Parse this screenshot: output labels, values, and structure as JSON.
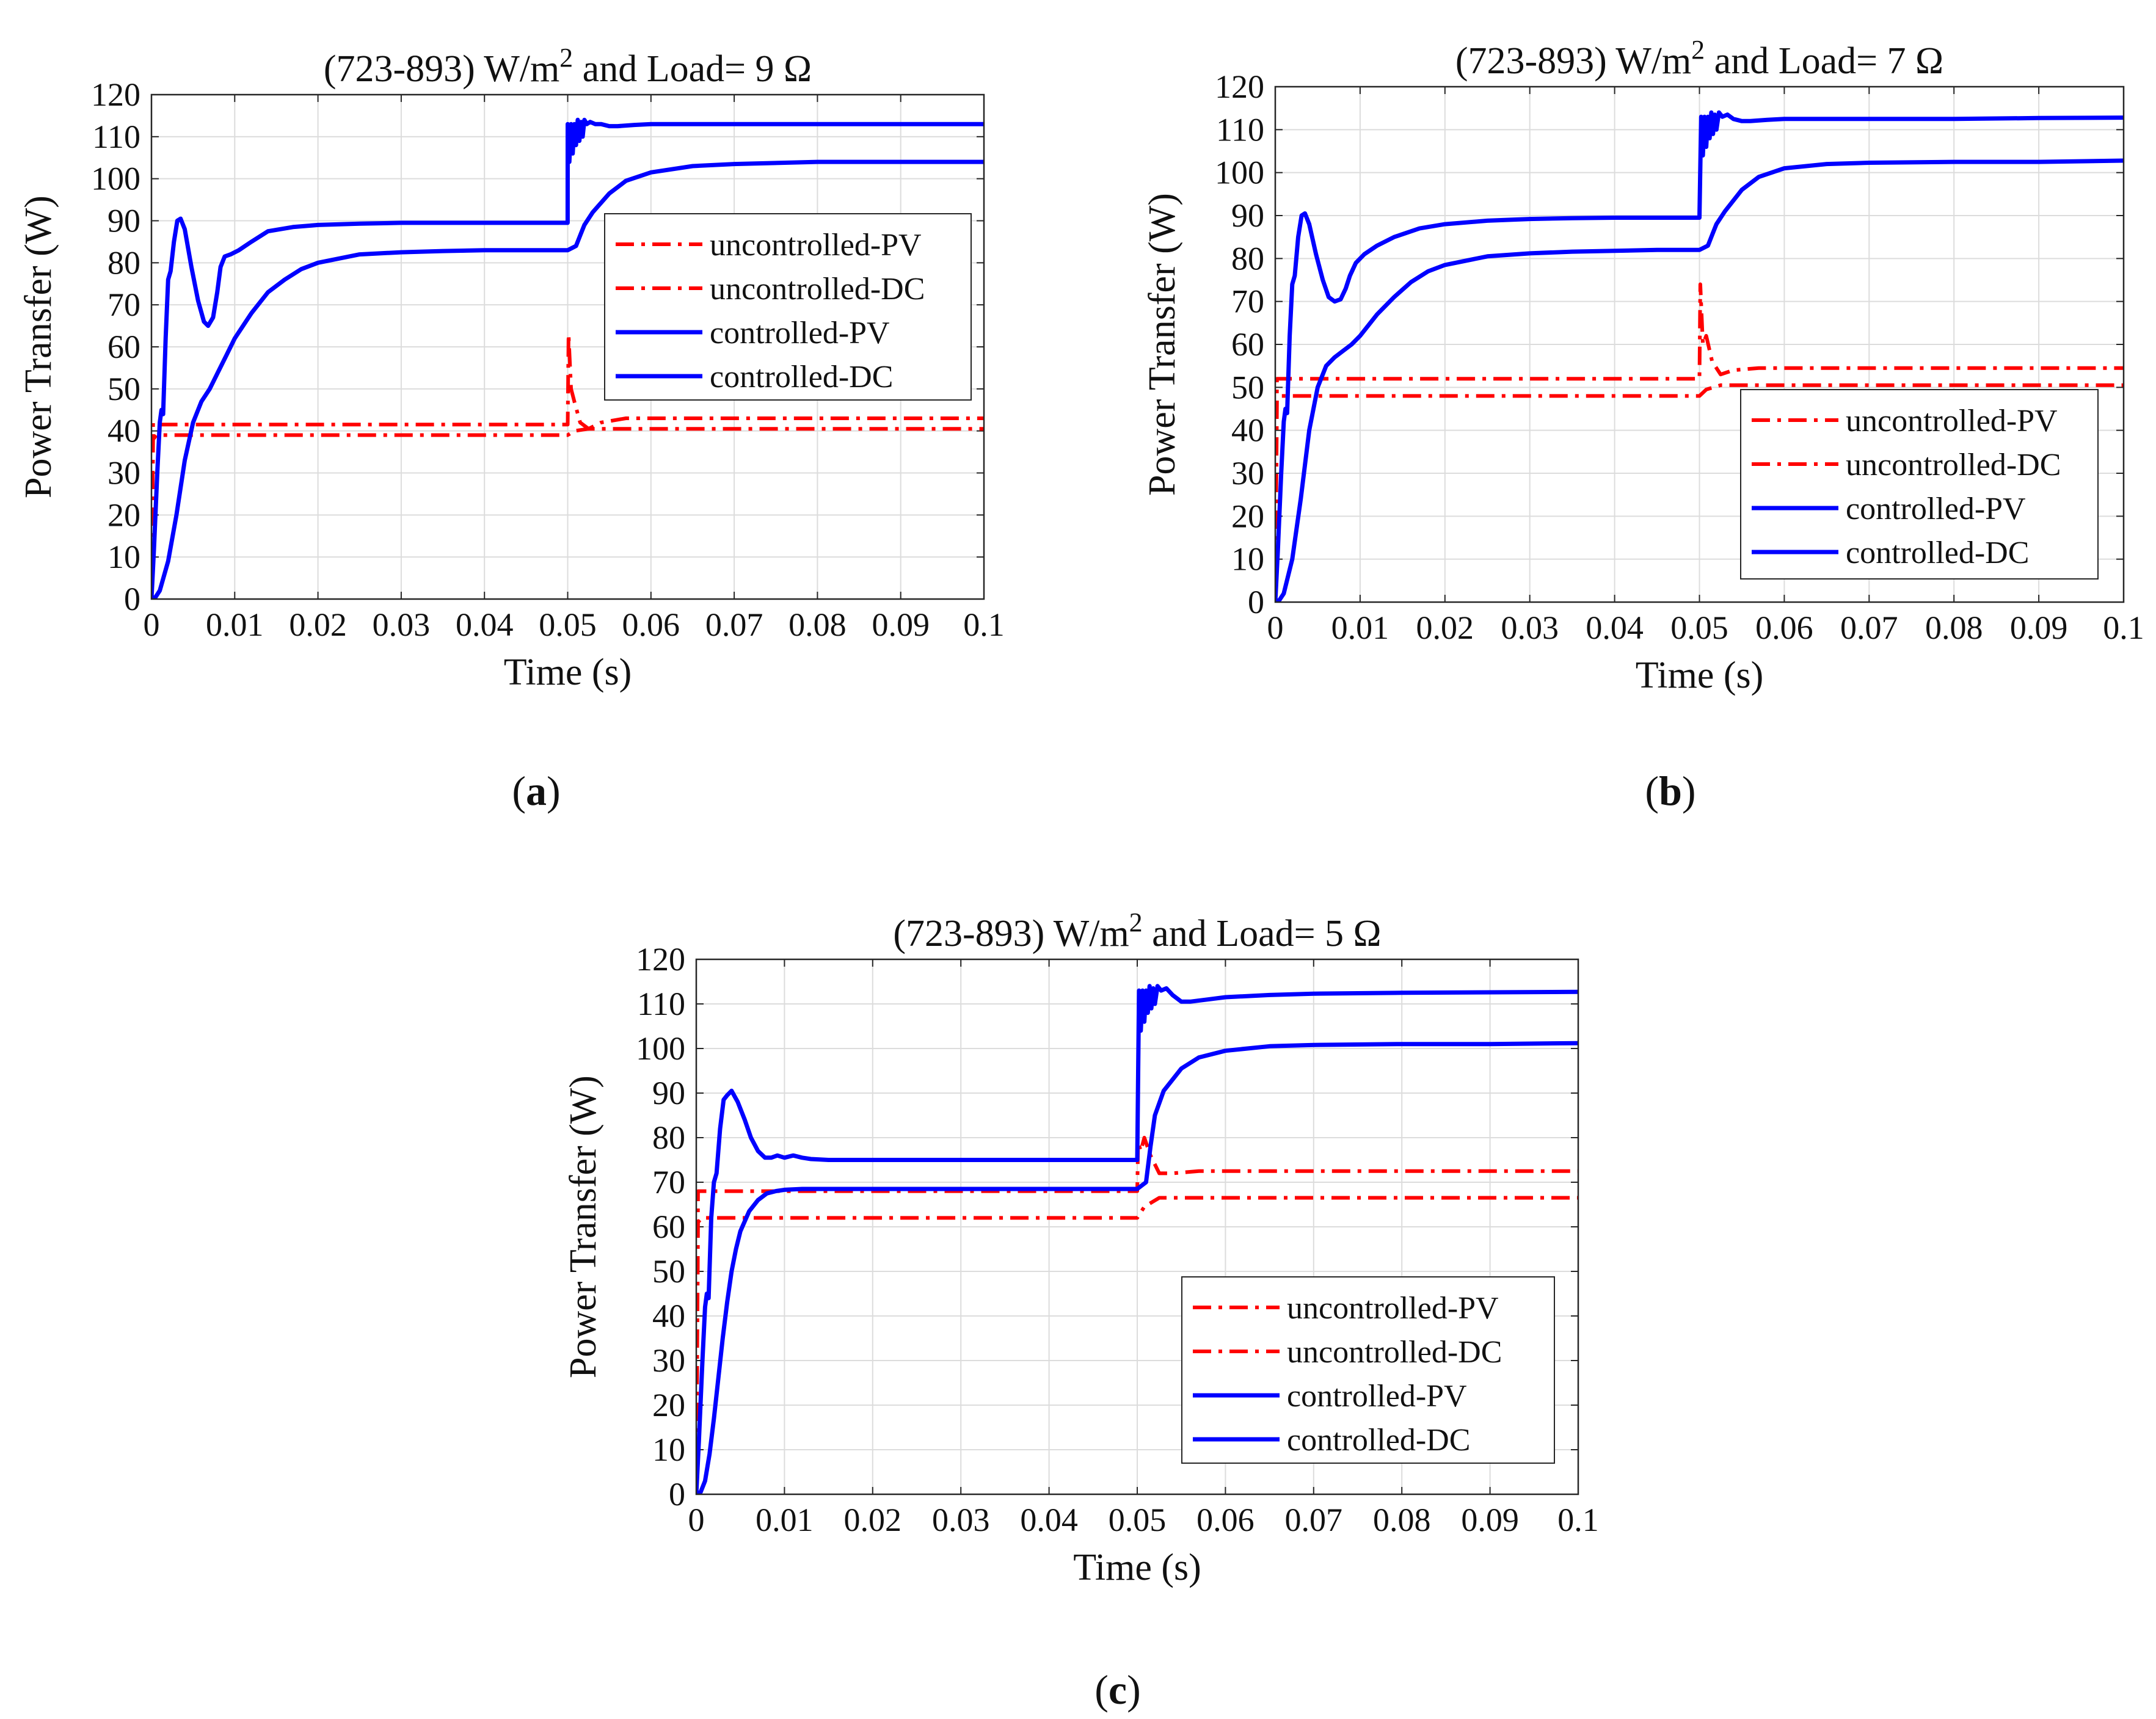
{
  "colors": {
    "uncontrolled": "#ff0000",
    "controlled": "#0000ff",
    "grid": "#dcdcdc",
    "axis": "#262626"
  },
  "chart_data": [
    {
      "panel": "a",
      "caption": "a",
      "type": "line",
      "title_prefix": "(723-893) W/m",
      "title_sup": "2",
      "title_suffix": " and Load= 9 Ω",
      "xlabel": "Time (s)",
      "ylabel": "Power Transfer (W)",
      "xlim": [
        0,
        0.1
      ],
      "ylim": [
        0,
        120
      ],
      "xticks": [
        0,
        0.01,
        0.02,
        0.03,
        0.04,
        0.05,
        0.06,
        0.07,
        0.08,
        0.09,
        0.1
      ],
      "xtick_labels": [
        "0",
        "0.01",
        "0.02",
        "0.03",
        "0.04",
        "0.05",
        "0.06",
        "0.07",
        "0.08",
        "0.09",
        "0.1"
      ],
      "yticks": [
        0,
        10,
        20,
        30,
        40,
        50,
        60,
        70,
        80,
        90,
        100,
        110,
        120
      ],
      "ytick_labels": [
        "0",
        "10",
        "20",
        "30",
        "40",
        "50",
        "60",
        "70",
        "80",
        "90",
        "100",
        "110",
        "120"
      ],
      "legend_position": "center-right",
      "series": [
        {
          "name": "uncontrolled-PV",
          "style": "dashdot",
          "color": "#ff0000",
          "x": [
            0,
            0.0002,
            0.0006,
            0.05,
            0.0501,
            0.0504,
            0.0508,
            0.0515,
            0.0525,
            0.054,
            0.057,
            0.1
          ],
          "y": [
            0,
            42,
            41.5,
            41.5,
            63,
            50,
            47,
            42,
            40.5,
            42,
            43,
            43
          ]
        },
        {
          "name": "uncontrolled-DC",
          "style": "dashdot",
          "color": "#ff0000",
          "x": [
            0,
            0.0002,
            0.0006,
            0.05,
            0.0508,
            0.0525,
            0.055,
            0.1
          ],
          "y": [
            0,
            38,
            39,
            39,
            40,
            40.5,
            40.5,
            40.5
          ]
        },
        {
          "name": "controlled-PV",
          "style": "solid",
          "color": "#0000ff",
          "x": [
            0,
            0.0003,
            0.0007,
            0.001,
            0.0012,
            0.0014,
            0.0017,
            0.002,
            0.0023,
            0.0027,
            0.0031,
            0.0035,
            0.004,
            0.0048,
            0.0056,
            0.0063,
            0.0068,
            0.0074,
            0.0079,
            0.0083,
            0.0088,
            0.0095,
            0.0105,
            0.012,
            0.014,
            0.017,
            0.02,
            0.025,
            0.03,
            0.035,
            0.04,
            0.045,
            0.04999,
            0.05,
            0.0502,
            0.0504,
            0.0506,
            0.0508,
            0.051,
            0.0512,
            0.0514,
            0.0516,
            0.0518,
            0.052,
            0.0523,
            0.0527,
            0.0533,
            0.054,
            0.055,
            0.056,
            0.058,
            0.06,
            0.065,
            0.07,
            0.08,
            0.09,
            0.1
          ],
          "y": [
            0,
            12,
            30,
            42,
            45,
            44,
            62,
            76,
            78,
            85,
            90,
            90.5,
            88,
            79,
            71,
            66,
            65,
            67,
            73,
            79,
            81.5,
            82,
            83,
            85,
            87.5,
            88.5,
            89,
            89.3,
            89.5,
            89.5,
            89.5,
            89.5,
            89.5,
            113,
            104,
            113,
            106,
            113,
            108,
            114,
            109,
            113.5,
            110,
            114,
            113,
            113.5,
            113,
            113,
            112.5,
            112.5,
            112.8,
            113,
            113,
            113,
            113,
            113,
            113
          ]
        },
        {
          "name": "controlled-DC",
          "style": "solid",
          "color": "#0000ff",
          "x": [
            0,
            0.0005,
            0.001,
            0.002,
            0.003,
            0.004,
            0.005,
            0.006,
            0.007,
            0.008,
            0.009,
            0.01,
            0.012,
            0.014,
            0.016,
            0.018,
            0.02,
            0.025,
            0.03,
            0.035,
            0.04,
            0.045,
            0.0498,
            0.05,
            0.051,
            0.0515,
            0.052,
            0.053,
            0.055,
            0.057,
            0.06,
            0.065,
            0.07,
            0.08,
            0.09,
            0.1
          ],
          "y": [
            0,
            0.5,
            2,
            9,
            20,
            33,
            42,
            47,
            50,
            54,
            58,
            62,
            68,
            73,
            76,
            78.5,
            80,
            82,
            82.5,
            82.8,
            83,
            83,
            83,
            83,
            84,
            86.5,
            89,
            92,
            96.5,
            99.5,
            101.5,
            103,
            103.5,
            104,
            104,
            104
          ]
        }
      ]
    },
    {
      "panel": "b",
      "caption": "b",
      "type": "line",
      "title_prefix": "(723-893) W/m",
      "title_sup": "2",
      "title_suffix": " and Load= 7 Ω",
      "xlabel": "Time (s)",
      "ylabel": "Power Transfer (W)",
      "xlim": [
        0,
        0.1
      ],
      "ylim": [
        0,
        120
      ],
      "xticks": [
        0,
        0.01,
        0.02,
        0.03,
        0.04,
        0.05,
        0.06,
        0.07,
        0.08,
        0.09,
        0.1
      ],
      "xtick_labels": [
        "0",
        "0.01",
        "0.02",
        "0.03",
        "0.04",
        "0.05",
        "0.06",
        "0.07",
        "0.08",
        "0.09",
        "0.1"
      ],
      "yticks": [
        0,
        10,
        20,
        30,
        40,
        50,
        60,
        70,
        80,
        90,
        100,
        110,
        120
      ],
      "ytick_labels": [
        "0",
        "10",
        "20",
        "30",
        "40",
        "50",
        "60",
        "70",
        "80",
        "90",
        "100",
        "110",
        "120"
      ],
      "legend_position": "bottom-right",
      "series": [
        {
          "name": "uncontrolled-PV",
          "style": "dashdot",
          "color": "#ff0000",
          "x": [
            0,
            0.0002,
            0.0006,
            0.05,
            0.0501,
            0.0504,
            0.0508,
            0.0515,
            0.0525,
            0.054,
            0.057,
            0.1
          ],
          "y": [
            0,
            52,
            52,
            52,
            74,
            60,
            62,
            56,
            53,
            54,
            54.5,
            54.5
          ]
        },
        {
          "name": "uncontrolled-DC",
          "style": "dashdot",
          "color": "#ff0000",
          "x": [
            0,
            0.0002,
            0.0006,
            0.05,
            0.0508,
            0.0525,
            0.055,
            0.1
          ],
          "y": [
            0,
            47,
            48,
            48,
            49.5,
            50.5,
            50.5,
            50.5
          ]
        },
        {
          "name": "controlled-PV",
          "style": "solid",
          "color": "#0000ff",
          "x": [
            0,
            0.0003,
            0.0007,
            0.001,
            0.0012,
            0.0014,
            0.0017,
            0.002,
            0.0023,
            0.0027,
            0.0031,
            0.0035,
            0.004,
            0.0048,
            0.0056,
            0.0063,
            0.007,
            0.0077,
            0.0083,
            0.0088,
            0.0095,
            0.0105,
            0.012,
            0.014,
            0.017,
            0.02,
            0.025,
            0.03,
            0.035,
            0.04,
            0.045,
            0.04999,
            0.05,
            0.0502,
            0.0504,
            0.0506,
            0.0508,
            0.051,
            0.0512,
            0.0514,
            0.0516,
            0.0518,
            0.052,
            0.0523,
            0.0527,
            0.0533,
            0.054,
            0.055,
            0.056,
            0.058,
            0.06,
            0.065,
            0.07,
            0.08,
            0.09,
            0.1
          ],
          "y": [
            0,
            12,
            30,
            42,
            45,
            44,
            62,
            74,
            76,
            85,
            90,
            90.5,
            88,
            81,
            75,
            71,
            70,
            70.5,
            73,
            76,
            79,
            81,
            83,
            85,
            87,
            88,
            88.8,
            89.2,
            89.4,
            89.5,
            89.5,
            89.5,
            89.5,
            113,
            104,
            113,
            106,
            113,
            108,
            114,
            109,
            113.5,
            110,
            114,
            113,
            113.5,
            112.5,
            112,
            112,
            112.3,
            112.5,
            112.5,
            112.5,
            112.5,
            112.7,
            112.8
          ]
        },
        {
          "name": "controlled-DC",
          "style": "solid",
          "color": "#0000ff",
          "x": [
            0,
            0.0005,
            0.001,
            0.002,
            0.003,
            0.004,
            0.005,
            0.006,
            0.007,
            0.008,
            0.009,
            0.01,
            0.012,
            0.014,
            0.016,
            0.018,
            0.02,
            0.025,
            0.03,
            0.035,
            0.04,
            0.045,
            0.0498,
            0.05,
            0.051,
            0.0515,
            0.052,
            0.053,
            0.055,
            0.057,
            0.06,
            0.065,
            0.07,
            0.08,
            0.09,
            0.1
          ],
          "y": [
            0,
            0.5,
            2,
            10,
            24,
            40,
            50,
            55,
            57,
            58.5,
            60,
            62,
            67,
            71,
            74.5,
            77,
            78.5,
            80.5,
            81.2,
            81.6,
            81.8,
            82,
            82,
            82,
            83,
            85.5,
            88,
            91,
            96,
            99,
            101,
            102,
            102.3,
            102.5,
            102.5,
            102.8
          ]
        }
      ]
    },
    {
      "panel": "c",
      "caption": "c",
      "type": "line",
      "title_prefix": "(723-893) W/m",
      "title_sup": "2",
      "title_suffix": " and Load= 5 Ω",
      "xlabel": "Time (s)",
      "ylabel": "Power Transfer (W)",
      "xlim": [
        0,
        0.1
      ],
      "ylim": [
        0,
        120
      ],
      "xticks": [
        0,
        0.01,
        0.02,
        0.03,
        0.04,
        0.05,
        0.06,
        0.07,
        0.08,
        0.09,
        0.1
      ],
      "xtick_labels": [
        "0",
        "0.01",
        "0.02",
        "0.03",
        "0.04",
        "0.05",
        "0.06",
        "0.07",
        "0.08",
        "0.09",
        "0.1"
      ],
      "yticks": [
        0,
        10,
        20,
        30,
        40,
        50,
        60,
        70,
        80,
        90,
        100,
        110,
        120
      ],
      "ytick_labels": [
        "0",
        "10",
        "20",
        "30",
        "40",
        "50",
        "60",
        "70",
        "80",
        "90",
        "100",
        "110",
        "120"
      ],
      "legend_position": "bottom-right",
      "series": [
        {
          "name": "uncontrolled-PV",
          "style": "dashdot",
          "color": "#ff0000",
          "x": [
            0,
            0.0002,
            0.0006,
            0.05,
            0.0501,
            0.0504,
            0.0508,
            0.0515,
            0.0525,
            0.054,
            0.057,
            0.1
          ],
          "y": [
            0,
            68,
            68,
            68,
            79,
            77,
            80,
            76,
            72,
            72,
            72.5,
            72.5
          ]
        },
        {
          "name": "uncontrolled-DC",
          "style": "dashdot",
          "color": "#ff0000",
          "x": [
            0,
            0.0002,
            0.0006,
            0.05,
            0.0508,
            0.0525,
            0.055,
            0.1
          ],
          "y": [
            0,
            61,
            62,
            62,
            64.5,
            66.5,
            66.5,
            66.5
          ]
        },
        {
          "name": "controlled-PV",
          "style": "solid",
          "color": "#0000ff",
          "x": [
            0,
            0.0003,
            0.0007,
            0.001,
            0.0012,
            0.0014,
            0.0017,
            0.002,
            0.0023,
            0.0027,
            0.0031,
            0.0035,
            0.004,
            0.0047,
            0.0055,
            0.0062,
            0.007,
            0.0078,
            0.0085,
            0.0092,
            0.01,
            0.011,
            0.012,
            0.013,
            0.015,
            0.02,
            0.025,
            0.03,
            0.035,
            0.04,
            0.045,
            0.04999,
            0.05,
            0.0502,
            0.0504,
            0.0506,
            0.0508,
            0.051,
            0.0512,
            0.0514,
            0.0516,
            0.0518,
            0.052,
            0.0523,
            0.0527,
            0.0533,
            0.054,
            0.055,
            0.056,
            0.058,
            0.06,
            0.065,
            0.07,
            0.08,
            0.09,
            0.1
          ],
          "y": [
            0,
            12,
            30,
            42,
            45,
            44,
            62,
            70,
            72,
            82,
            88.5,
            89.5,
            90.5,
            88,
            84,
            80,
            77,
            75.5,
            75.5,
            76,
            75.5,
            76,
            75.5,
            75.2,
            75,
            75,
            75,
            75,
            75,
            75,
            75,
            75,
            75,
            113,
            104,
            113,
            106,
            113,
            108,
            114,
            109,
            113.5,
            110,
            114,
            113,
            113.5,
            112,
            110.5,
            110.5,
            111,
            111.5,
            112,
            112.3,
            112.5,
            112.6,
            112.7
          ]
        },
        {
          "name": "controlled-DC",
          "style": "solid",
          "color": "#0000ff",
          "x": [
            0,
            0.0005,
            0.001,
            0.0015,
            0.002,
            0.0025,
            0.003,
            0.0035,
            0.004,
            0.0045,
            0.005,
            0.006,
            0.007,
            0.008,
            0.009,
            0.01,
            0.012,
            0.015,
            0.02,
            0.03,
            0.04,
            0.0498,
            0.05,
            0.051,
            0.0515,
            0.052,
            0.053,
            0.055,
            0.057,
            0.06,
            0.065,
            0.07,
            0.08,
            0.09,
            0.1
          ],
          "y": [
            0,
            0.5,
            3,
            9,
            17,
            26,
            35,
            43,
            50,
            55,
            59,
            63.5,
            66,
            67.5,
            68,
            68.3,
            68.5,
            68.5,
            68.5,
            68.5,
            68.5,
            68.5,
            68.5,
            70,
            78,
            85,
            90.5,
            95.5,
            98,
            99.5,
            100.5,
            100.8,
            101,
            101,
            101.2
          ]
        }
      ]
    }
  ]
}
